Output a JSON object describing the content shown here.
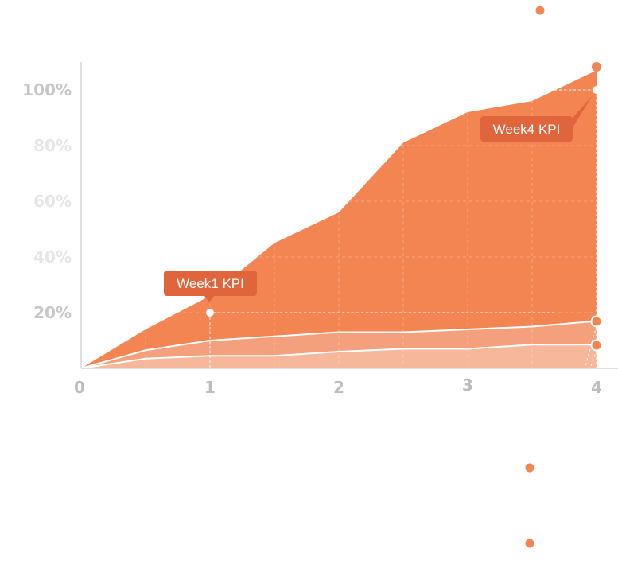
{
  "colors": {
    "outer": "#F28552",
    "middle": "#F4A07C",
    "inner": "#F7B79A",
    "callout": "#E0653C",
    "axis": "#d6d6d6",
    "tick_dark": "#c4c4c4",
    "tick_light": "#e3e3e3"
  },
  "chart_data": {
    "type": "area",
    "x": [
      0,
      0.5,
      1,
      1.5,
      2,
      2.5,
      3,
      3.5,
      4
    ],
    "xlim": [
      0,
      4
    ],
    "ylim": [
      0,
      110
    ],
    "x_ticks": [
      "0",
      "1",
      "2",
      "3",
      "4"
    ],
    "y_ticks": [
      "100%",
      "80%",
      "60%",
      "40%",
      "20%"
    ],
    "y_tick_values": [
      100,
      80,
      60,
      40,
      20
    ],
    "grid": "dashed, inside plot area",
    "series": [
      {
        "values": [
          0,
          14,
          26,
          45,
          56,
          81,
          92,
          96,
          107
        ]
      },
      {
        "values": [
          0,
          6.5,
          10,
          11.5,
          13,
          13,
          14,
          15,
          17
        ]
      },
      {
        "values": [
          0,
          3.5,
          4.5,
          4.5,
          6,
          7,
          7,
          8.5,
          8.5
        ]
      }
    ],
    "annotations": [
      {
        "text": "Week1 KPI",
        "x": 1,
        "y": 20
      },
      {
        "text": "Week4 KPI",
        "x": 4,
        "y": 100
      }
    ],
    "legend_markers": 4
  }
}
